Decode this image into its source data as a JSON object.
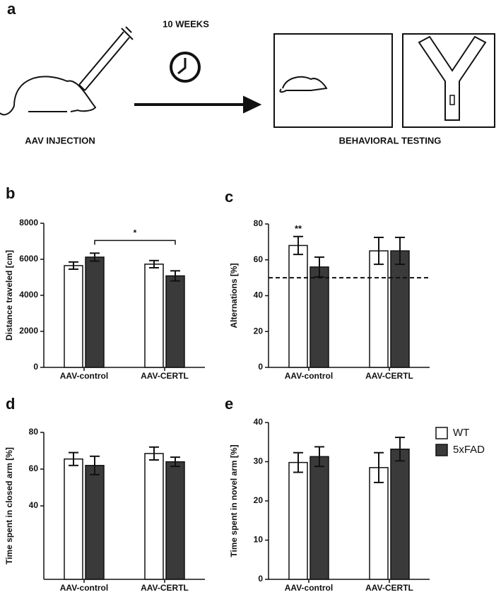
{
  "panel_a": {
    "label": "a",
    "duration": "10 WEEKS",
    "left_caption": "AAV INJECTION",
    "right_caption": "BEHAVIORAL TESTING"
  },
  "chart_data": [
    {
      "type": "bar",
      "panel": "b",
      "ylabel": "Distance traveled [cm]",
      "categories": [
        "AAV-control",
        "AAV-CERTL"
      ],
      "series": [
        {
          "name": "WT",
          "color": "#ffffff",
          "values": [
            5650,
            5730
          ],
          "errors": [
            200,
            200
          ]
        },
        {
          "name": "5xFAD",
          "color": "#3a3a3a",
          "values": [
            6120,
            5080
          ],
          "errors": [
            220,
            280
          ]
        }
      ],
      "ylim": [
        0,
        8000
      ],
      "yticks": [
        0,
        2000,
        4000,
        6000,
        8000
      ],
      "annotation": "*"
    },
    {
      "type": "bar",
      "panel": "c",
      "ylabel": "Alternations [%]",
      "categories": [
        "AAV-control",
        "AAV-CERTL"
      ],
      "series": [
        {
          "name": "WT",
          "color": "#ffffff",
          "values": [
            68,
            65
          ],
          "errors": [
            5,
            7.5
          ]
        },
        {
          "name": "5xFAD",
          "color": "#3a3a3a",
          "values": [
            56,
            65
          ],
          "errors": [
            5.5,
            7.5
          ]
        }
      ],
      "ylim": [
        0,
        80
      ],
      "yticks": [
        0,
        20,
        40,
        60,
        80
      ],
      "reference_line": 50,
      "annotation": "**"
    },
    {
      "type": "bar",
      "panel": "d",
      "ylabel": "Time spent in closed arm [%]",
      "categories": [
        "AAV-control",
        "AAV-CERTL"
      ],
      "series": [
        {
          "name": "WT",
          "color": "#ffffff",
          "values": [
            65.5,
            68.5
          ],
          "errors": [
            3.5,
            3.5
          ]
        },
        {
          "name": "5xFAD",
          "color": "#3a3a3a",
          "values": [
            62,
            64
          ],
          "errors": [
            5,
            2.5
          ]
        }
      ],
      "ylim": [
        0,
        80
      ],
      "yticks": [
        40,
        60,
        80
      ]
    },
    {
      "type": "bar",
      "panel": "e",
      "ylabel": "Time spent in novel arm [%]",
      "categories": [
        "AAV-control",
        "AAV-CERTL"
      ],
      "series": [
        {
          "name": "WT",
          "color": "#ffffff",
          "values": [
            29.8,
            28.5
          ],
          "errors": [
            2.5,
            3.8
          ]
        },
        {
          "name": "5xFAD",
          "color": "#3a3a3a",
          "values": [
            31.3,
            33.2
          ],
          "errors": [
            2.5,
            3
          ]
        }
      ],
      "ylim": [
        0,
        40
      ],
      "yticks": [
        0,
        10,
        20,
        30,
        40
      ]
    }
  ]
}
